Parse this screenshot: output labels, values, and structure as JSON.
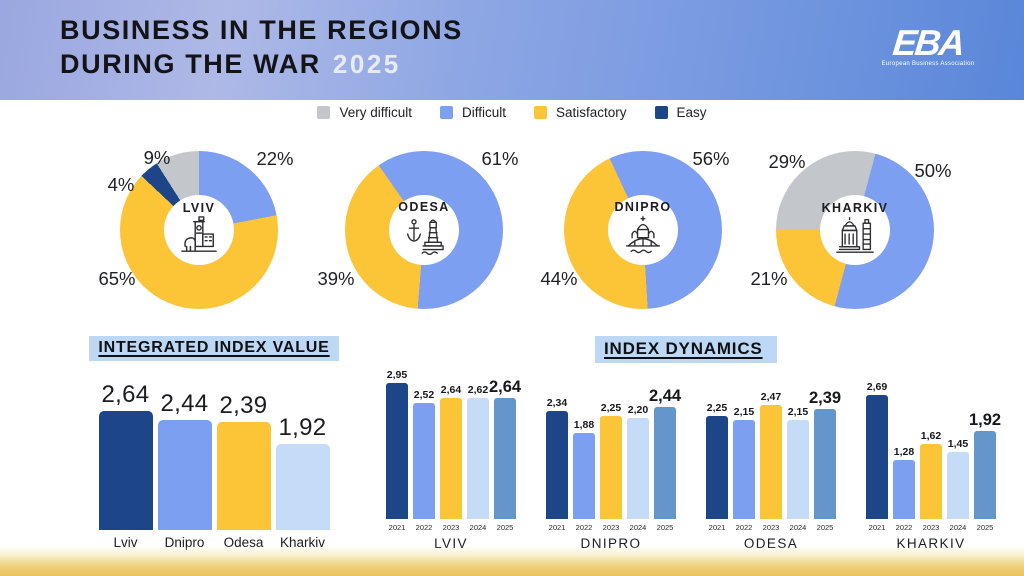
{
  "header": {
    "title_line1": "BUSINESS IN THE REGIONS",
    "title_line2": "DURING THE WAR",
    "year_badge": "2025",
    "logo_text": "EBA",
    "logo_subtext": "European Business Association"
  },
  "legend": {
    "items": [
      {
        "label": "Very difficult",
        "color": "#c3c7cc"
      },
      {
        "label": "Difficult",
        "color": "#7c9ff1"
      },
      {
        "label": "Satisfactory",
        "color": "#fcc437"
      },
      {
        "label": "Easy",
        "color": "#1d4689"
      }
    ]
  },
  "colors": {
    "navy": "#1d4689",
    "blue": "#7c9ff1",
    "yellow": "#fcc437",
    "light_blue": "#c5dcf8",
    "steel_blue": "#6496cb",
    "gray": "#c3c7cc",
    "title_highlight": "#bdd8f4",
    "footer_gold": "#eac25c",
    "header_blue": "#7f9de2"
  },
  "chart_data": {
    "donuts": [
      {
        "type": "pie",
        "city": "LVIV",
        "icon": "lviv-landmark-icon",
        "start_angle": 0,
        "slices": [
          {
            "label": "Difficult",
            "pct": 22,
            "display": "22%",
            "color": "#7c9ff1"
          },
          {
            "label": "Satisfactory",
            "pct": 65,
            "display": "65%",
            "color": "#fcc437"
          },
          {
            "label": "Easy",
            "pct": 4,
            "display": "4%",
            "color": "#1d4689"
          },
          {
            "label": "Very difficult",
            "pct": 9,
            "display": "9%",
            "color": "#c3c7cc"
          }
        ]
      },
      {
        "type": "pie",
        "city": "ODESA",
        "icon": "odesa-lighthouse-icon",
        "start_angle": -35,
        "slices": [
          {
            "label": "Difficult",
            "pct": 61,
            "display": "61%",
            "color": "#7c9ff1"
          },
          {
            "label": "Satisfactory",
            "pct": 39,
            "display": "39%",
            "color": "#fcc437"
          }
        ]
      },
      {
        "type": "pie",
        "city": "DNIPRO",
        "icon": "dnipro-cathedral-icon",
        "start_angle": -25,
        "slices": [
          {
            "label": "Difficult",
            "pct": 56,
            "display": "56%",
            "color": "#7c9ff1"
          },
          {
            "label": "Satisfactory",
            "pct": 44,
            "display": "44%",
            "color": "#fcc437"
          }
        ]
      },
      {
        "type": "pie",
        "city": "KHARKIV",
        "icon": "kharkiv-building-icon",
        "start_angle": 15,
        "slices": [
          {
            "label": "Difficult",
            "pct": 50,
            "display": "50%",
            "color": "#7c9ff1"
          },
          {
            "label": "Satisfactory",
            "pct": 21,
            "display": "21%",
            "color": "#fcc437"
          },
          {
            "label": "Very difficult",
            "pct": 29,
            "display": "29%",
            "color": "#c3c7cc"
          }
        ]
      }
    ],
    "integrated_index": {
      "type": "bar",
      "title": "INTEGRATED INDEX VALUE",
      "categories": [
        "Lviv",
        "Dnipro",
        "Odesa",
        "Kharkiv"
      ],
      "values": [
        2.64,
        2.44,
        2.39,
        1.92
      ],
      "labels": [
        "2,64",
        "2,44",
        "2,39",
        "1,92"
      ],
      "bar_colors": [
        "#1d4689",
        "#7c9ff1",
        "#fcc437",
        "#c5dcf8"
      ],
      "ylim": [
        0,
        3
      ]
    },
    "index_dynamics": {
      "type": "bar",
      "title": "INDEX DYNAMICS",
      "years": [
        "2021",
        "2022",
        "2023",
        "2024",
        "2025"
      ],
      "year_colors": [
        "#1d4689",
        "#7c9ff1",
        "#fcc437",
        "#c5dcf8",
        "#6496cb"
      ],
      "ylim": [
        0,
        3
      ],
      "series": [
        {
          "city": "LVIV",
          "values": [
            2.95,
            2.52,
            2.64,
            2.62,
            2.64
          ],
          "labels": [
            "2,95",
            "2,52",
            "2,64",
            "2,62",
            "2,64"
          ]
        },
        {
          "city": "DNIPRO",
          "values": [
            2.34,
            1.88,
            2.25,
            2.2,
            2.44
          ],
          "labels": [
            "2,34",
            "1,88",
            "2,25",
            "2,20",
            "2,44"
          ]
        },
        {
          "city": "ODESA",
          "values": [
            2.25,
            2.15,
            2.47,
            2.15,
            2.39
          ],
          "labels": [
            "2,25",
            "2,15",
            "2,47",
            "2,15",
            "2,39"
          ]
        },
        {
          "city": "KHARKIV",
          "values": [
            2.69,
            1.28,
            1.62,
            1.45,
            1.92
          ],
          "labels": [
            "2,69",
            "1,28",
            "1,62",
            "1,45",
            "1,92"
          ]
        }
      ]
    }
  }
}
